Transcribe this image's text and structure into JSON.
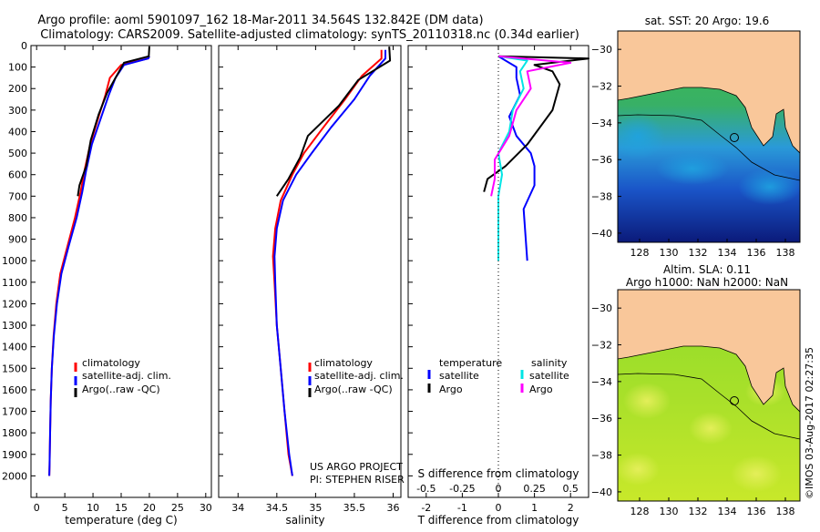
{
  "header": {
    "line1": "Argo profile: aoml 5901097_162 18-Mar-2011 34.564S 132.842E (DM data)",
    "line2": "Climatology: CARS2009. Satellite-adjusted climatology: synTS_20110318.nc (0.34d earlier)"
  },
  "colors": {
    "climatology": "#ff0000",
    "satellite": "#0000ff",
    "argo": "#000000",
    "satellite_salinity": "#00e5e5",
    "argo_salinity": "#ff00ff",
    "land": "#f9c79a"
  },
  "panels": {
    "temperature": {
      "xlabel": "temperature (deg C)",
      "legend": [
        "climatology",
        "satellite-adj. clim.",
        "Argo(..raw -QC)"
      ]
    },
    "salinity": {
      "xlabel": "salinity",
      "legend": [
        "climatology",
        "satellite-adj. clim.",
        "Argo(..raw -QC)"
      ],
      "credit1": "US ARGO PROJECT",
      "credit2": "PI: STEPHEN RISER"
    },
    "difference": {
      "top_label": "S difference from climatology",
      "xlabel": "T difference from climatology",
      "legend_temperature": "temperature",
      "legend_salinity": "salinity",
      "satellite_label_t": "satellite",
      "argo_label_t": "Argo",
      "satellite_label_s": "satellite",
      "argo_label_s": "Argo"
    }
  },
  "maps": {
    "sst_title": "sat. SST: 20 Argo: 19.6",
    "sla_title1": "Altim. SLA: 0.11",
    "sla_title2": "Argo h1000: NaN h2000: NaN",
    "credit": "©IMOS 03-Aug-2017 02:27:35"
  },
  "chart_data": [
    {
      "type": "line",
      "name": "temperature",
      "xlabel": "temperature (deg C)",
      "ylabel": "",
      "xlim": [
        -1,
        31
      ],
      "ylim": [
        2100,
        0
      ],
      "xticks": [
        0,
        5,
        10,
        15,
        20,
        25,
        30
      ],
      "yticks": [
        0,
        100,
        200,
        300,
        400,
        500,
        600,
        700,
        800,
        900,
        1000,
        1100,
        1200,
        1300,
        1400,
        1500,
        1600,
        1700,
        1800,
        1900,
        2000
      ],
      "series": [
        {
          "name": "climatology",
          "color": "#ff0000",
          "points": [
            [
              20,
              50
            ],
            [
              19.8,
              60
            ],
            [
              15,
              90
            ],
            [
              13,
              150
            ],
            [
              12.2,
              230
            ],
            [
              11,
              330
            ],
            [
              9.5,
              460
            ],
            [
              8.5,
              580
            ],
            [
              7.8,
              680
            ],
            [
              6.8,
              800
            ],
            [
              5.5,
              930
            ],
            [
              4.2,
              1060
            ],
            [
              3.5,
              1200
            ],
            [
              3.0,
              1350
            ],
            [
              2.7,
              1500
            ],
            [
              2.5,
              1650
            ],
            [
              2.4,
              1800
            ],
            [
              2.3,
              1950
            ],
            [
              2.25,
              2000
            ]
          ]
        },
        {
          "name": "satellite-adj. clim.",
          "color": "#0000ff",
          "points": [
            [
              20,
              50
            ],
            [
              19.8,
              60
            ],
            [
              15.5,
              90
            ],
            [
              14,
              150
            ],
            [
              12.8,
              230
            ],
            [
              11.5,
              330
            ],
            [
              9.8,
              460
            ],
            [
              8.8,
              580
            ],
            [
              8.1,
              680
            ],
            [
              7.1,
              800
            ],
            [
              5.7,
              930
            ],
            [
              4.4,
              1060
            ],
            [
              3.6,
              1200
            ],
            [
              3.05,
              1350
            ],
            [
              2.7,
              1500
            ],
            [
              2.5,
              1650
            ],
            [
              2.4,
              1800
            ],
            [
              2.3,
              1950
            ],
            [
              2.25,
              2000
            ]
          ]
        },
        {
          "name": "Argo(..raw -QC)",
          "color": "#000000",
          "points": [
            [
              20,
              5
            ],
            [
              19.9,
              50
            ],
            [
              15.5,
              80
            ],
            [
              14.2,
              140
            ],
            [
              12.5,
              220
            ],
            [
              11.0,
              320
            ],
            [
              9.6,
              440
            ],
            [
              8.8,
              560
            ],
            [
              7.6,
              650
            ],
            [
              7.3,
              700
            ]
          ]
        }
      ]
    },
    {
      "type": "line",
      "name": "salinity",
      "xlabel": "salinity",
      "ylabel": "",
      "xlim": [
        33.75,
        36.1
      ],
      "ylim": [
        2100,
        0
      ],
      "xticks": [
        34,
        34.5,
        35,
        35.5,
        36
      ],
      "series": [
        {
          "name": "climatology",
          "color": "#ff0000",
          "points": [
            [
              35.85,
              20
            ],
            [
              35.85,
              60
            ],
            [
              35.6,
              140
            ],
            [
              35.38,
              250
            ],
            [
              35.1,
              380
            ],
            [
              34.85,
              500
            ],
            [
              34.7,
              600
            ],
            [
              34.55,
              720
            ],
            [
              34.48,
              850
            ],
            [
              34.45,
              980
            ],
            [
              34.47,
              1100
            ],
            [
              34.5,
              1300
            ],
            [
              34.55,
              1500
            ],
            [
              34.6,
              1700
            ],
            [
              34.65,
              1900
            ],
            [
              34.7,
              2000
            ]
          ]
        },
        {
          "name": "satellite-adj. clim.",
          "color": "#0000ff",
          "points": [
            [
              35.9,
              20
            ],
            [
              35.9,
              60
            ],
            [
              35.7,
              140
            ],
            [
              35.5,
              250
            ],
            [
              35.2,
              380
            ],
            [
              34.95,
              500
            ],
            [
              34.75,
              600
            ],
            [
              34.58,
              720
            ],
            [
              34.5,
              850
            ],
            [
              34.47,
              980
            ],
            [
              34.48,
              1100
            ],
            [
              34.5,
              1300
            ],
            [
              34.55,
              1500
            ],
            [
              34.6,
              1700
            ],
            [
              34.66,
              1900
            ],
            [
              34.7,
              2000
            ]
          ]
        },
        {
          "name": "Argo(..raw -QC)",
          "color": "#000000",
          "points": [
            [
              35.95,
              5
            ],
            [
              35.96,
              70
            ],
            [
              35.55,
              160
            ],
            [
              35.3,
              280
            ],
            [
              34.9,
              420
            ],
            [
              34.8,
              520
            ],
            [
              34.65,
              620
            ],
            [
              34.5,
              700
            ]
          ]
        }
      ]
    },
    {
      "type": "line",
      "name": "difference",
      "xlabel": "T difference from climatology",
      "xlim": [
        -2.5,
        2.5
      ],
      "ylim": [
        2100,
        0
      ],
      "xticks": [
        -2,
        -1,
        0,
        1,
        2
      ],
      "top_xticks": [
        -0.5,
        -0.25,
        0,
        0.25,
        0.5
      ],
      "series": [
        {
          "name": "satellite",
          "group": "temperature",
          "color": "#0000ff",
          "points": [
            [
              0,
              50
            ],
            [
              0.5,
              100
            ],
            [
              0.5,
              150
            ],
            [
              0.6,
              230
            ],
            [
              0.3,
              330
            ],
            [
              0.5,
              420
            ],
            [
              0.9,
              500
            ],
            [
              1.0,
              560
            ],
            [
              1.0,
              650
            ],
            [
              0.7,
              760
            ],
            [
              0.75,
              880
            ],
            [
              0.8,
              1000
            ]
          ]
        },
        {
          "name": "Argo",
          "group": "temperature",
          "color": "#000000",
          "points": [
            [
              0,
              50
            ],
            [
              2.5,
              60
            ],
            [
              1.0,
              90
            ],
            [
              1.5,
              120
            ],
            [
              1.7,
              180
            ],
            [
              1.5,
              300
            ],
            [
              0.8,
              460
            ],
            [
              0.2,
              560
            ],
            [
              -0.3,
              620
            ],
            [
              -0.4,
              680
            ]
          ]
        },
        {
          "name": "satellite",
          "group": "salinity",
          "color": "#00e5e5",
          "points": [
            [
              0.0,
              50
            ],
            [
              0.8,
              70
            ],
            [
              0.6,
              120
            ],
            [
              0.7,
              200
            ],
            [
              0.4,
              300
            ],
            [
              0.3,
              400
            ],
            [
              0.0,
              500
            ],
            [
              0.1,
              600
            ],
            [
              0.0,
              700
            ],
            [
              0.0,
              850
            ],
            [
              0.0,
              1000
            ]
          ]
        },
        {
          "name": "Argo",
          "group": "salinity",
          "color": "#ff00ff",
          "points": [
            [
              0.0,
              50
            ],
            [
              2.0,
              80
            ],
            [
              0.8,
              120
            ],
            [
              0.9,
              200
            ],
            [
              0.5,
              300
            ],
            [
              0.3,
              420
            ],
            [
              -0.1,
              530
            ],
            [
              -0.1,
              620
            ],
            [
              -0.2,
              700
            ]
          ]
        }
      ]
    },
    {
      "type": "heatmap",
      "name": "sst_map",
      "title": "sat. SST: 20 Argo: 19.6",
      "xlim": [
        126.5,
        139
      ],
      "ylim": [
        -40.5,
        -29
      ],
      "xticks": [
        128,
        130,
        132,
        134,
        136,
        138
      ],
      "yticks": [
        -30,
        -32,
        -34,
        -36,
        -38,
        -40
      ],
      "argo_position": [
        132.842,
        -34.564
      ]
    },
    {
      "type": "heatmap",
      "name": "sla_map",
      "title": "Altim. SLA: 0.11",
      "xlim": [
        126.5,
        139
      ],
      "ylim": [
        -40.5,
        -29
      ],
      "xticks": [
        128,
        130,
        132,
        134,
        136,
        138
      ],
      "yticks": [
        -30,
        -32,
        -34,
        -36,
        -38,
        -40
      ],
      "argo_position": [
        132.842,
        -34.564
      ]
    }
  ]
}
